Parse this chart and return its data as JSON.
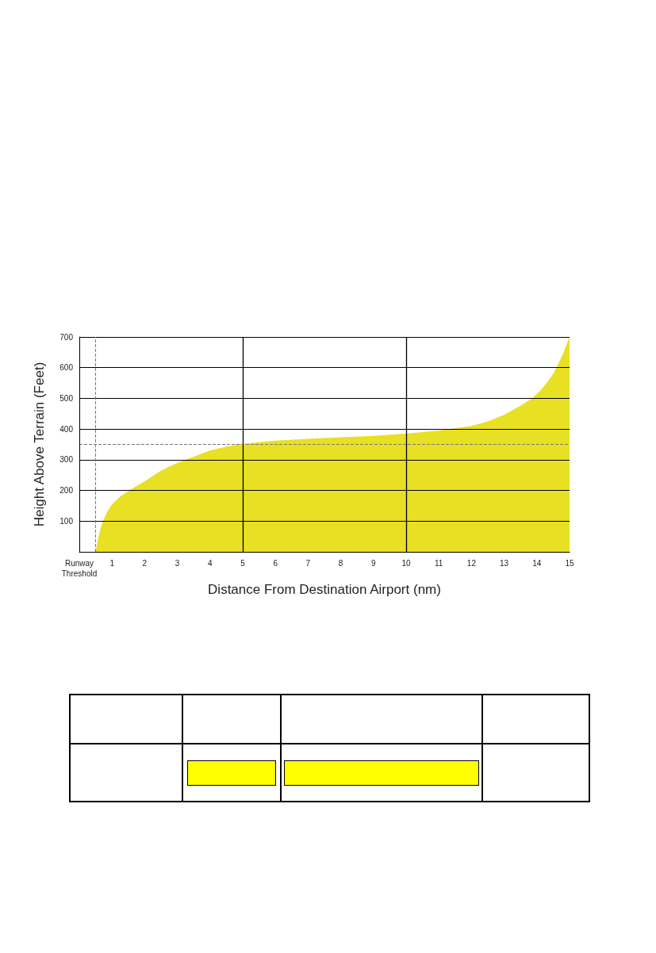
{
  "chart_data": {
    "type": "area",
    "xlabel": "Distance From Destination Airport (nm)",
    "ylabel": "Height Above Terrain (Feet)",
    "series": [
      {
        "color": "#e8e022",
        "x": [
          0.5,
          0.55,
          0.62,
          0.72,
          0.85,
          1,
          1.25,
          1.53,
          2,
          2.5,
          3,
          3.5,
          4,
          4.5,
          5,
          6,
          7,
          8,
          9,
          10,
          11,
          12,
          12.5,
          13,
          13.5,
          13.85,
          14.1,
          14.3,
          14.5,
          14.6,
          14.8,
          15
        ],
        "values": [
          0,
          30,
          65,
          100,
          130,
          155,
          180,
          200,
          230,
          265,
          290,
          310,
          330,
          343,
          352,
          362,
          368,
          373,
          378,
          385,
          395,
          410,
          425,
          446,
          476,
          500,
          525,
          550,
          580,
          600,
          645,
          700
        ]
      }
    ],
    "xlim": [
      0,
      15
    ],
    "ylim": [
      0,
      700
    ],
    "xticks": [
      {
        "value": 0,
        "label": "Runway Threshold"
      },
      1,
      2,
      3,
      4,
      5,
      6,
      7,
      8,
      9,
      10,
      11,
      12,
      13,
      14,
      15
    ],
    "yticks": [
      {
        "value": 0,
        "label": null
      },
      100,
      200,
      300,
      400,
      500,
      600,
      700
    ],
    "grid": "y",
    "ref_lines": [
      {
        "axis": "x",
        "value": 5,
        "color": "#000000",
        "line_style": "solid"
      },
      {
        "axis": "x",
        "value": 10,
        "color": "#000000",
        "line_style": "solid"
      },
      {
        "axis": "x",
        "value": 0.5,
        "color": "#777777",
        "line_style": "dashed"
      },
      {
        "axis": "y",
        "value": 350,
        "color": "#777777",
        "line_style": "dashed"
      }
    ]
  }
}
